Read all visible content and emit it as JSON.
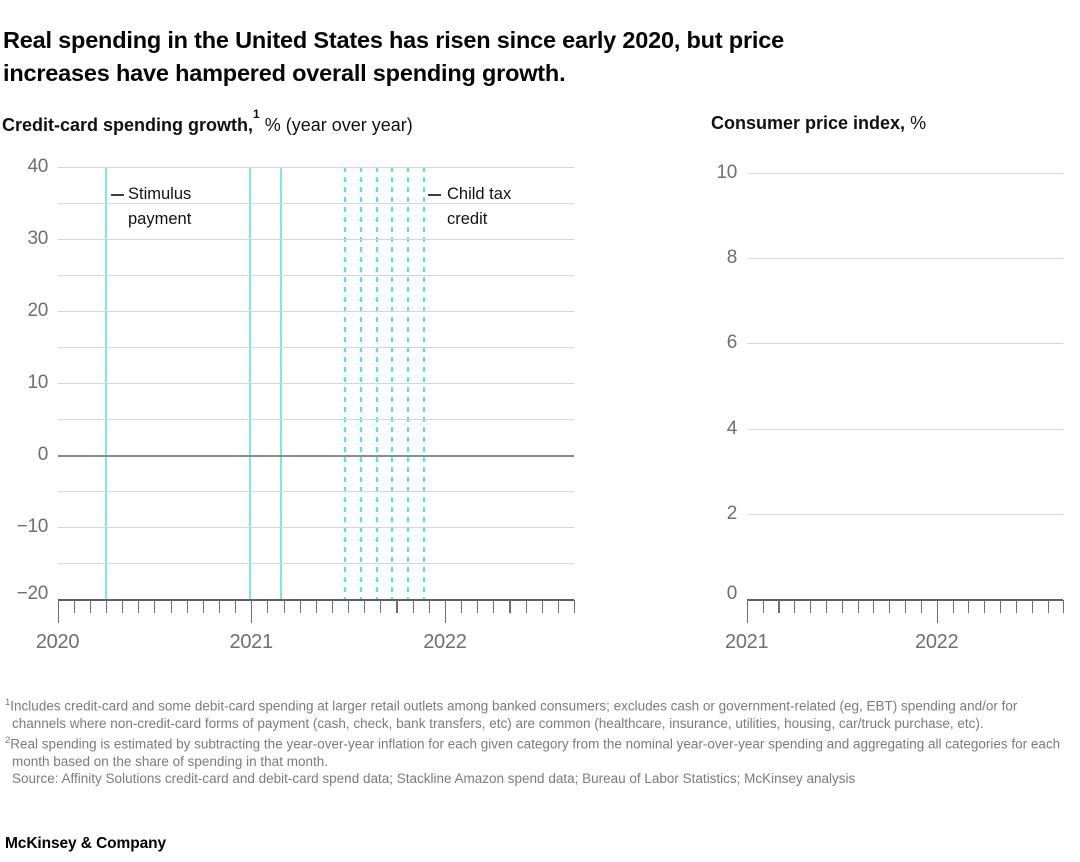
{
  "page": {
    "title_line1": "Real spending in the United States has risen since early 2020, but price",
    "title_line2": "increases have hampered overall spending growth.",
    "footer_wordmark": "McKinsey & Company"
  },
  "charts": {
    "left": {
      "title_bold": "Credit-card spending growth,",
      "title_sup": "1",
      "title_rest": "% (year over year)",
      "y_ticks": [
        {
          "v": 40,
          "t": "40"
        },
        {
          "v": 30,
          "t": "30"
        },
        {
          "v": 20,
          "t": "20"
        },
        {
          "v": 10,
          "t": "10"
        },
        {
          "v": 0,
          "t": "0"
        },
        {
          "v": -10,
          "t": "−10"
        },
        {
          "v": -20,
          "t": "−20"
        }
      ],
      "x_year_ticks": [
        {
          "month": 0,
          "t": "2020"
        },
        {
          "month": 12,
          "t": "2021"
        },
        {
          "month": 24,
          "t": "2022"
        }
      ],
      "event_lines": [
        {
          "style": "solid",
          "month": 3.0
        },
        {
          "style": "solid",
          "month": 11.95
        },
        {
          "style": "solid",
          "month": 13.85
        },
        {
          "style": "dashed",
          "month": 17.8
        },
        {
          "style": "dashed",
          "month": 18.8
        },
        {
          "style": "dashed",
          "month": 19.8
        },
        {
          "style": "dashed",
          "month": 20.75
        },
        {
          "style": "dashed",
          "month": 21.7
        },
        {
          "style": "dashed",
          "month": 22.7
        }
      ],
      "annotations": {
        "stimulus": {
          "line1": "Stimulus",
          "line2": "payment"
        },
        "child_tax": {
          "line1": "Child tax",
          "line2": "credit"
        }
      },
      "colors": {
        "solid_line": "#7ce9e9",
        "dashed_line": "#4de8e8"
      }
    },
    "right": {
      "title_bold": "Consumer price index,",
      "title_rest": "%",
      "y_ticks": [
        {
          "v": 10,
          "t": "10"
        },
        {
          "v": 8,
          "t": "8"
        },
        {
          "v": 6,
          "t": "6"
        },
        {
          "v": 4,
          "t": "4"
        },
        {
          "v": 2,
          "t": "2"
        },
        {
          "v": 0,
          "t": "0"
        }
      ],
      "x_year_ticks": [
        {
          "month": 0,
          "t": "2021"
        },
        {
          "month": 12,
          "t": "2022"
        }
      ],
      "event_lines": []
    }
  },
  "footnotes": {
    "fn1_sup": "1",
    "fn1_text": "Includes credit-card and some debit-card spending at larger retail outlets among banked consumers; excludes cash or government-related (eg, EBT) spending and/or for channels where non-credit-card forms of payment (cash, check, bank transfers, etc) are common (healthcare, insurance, utilities, housing, car/truck purchase, etc).",
    "fn2_sup": "2",
    "fn2_text": "Real spending is estimated by subtracting the year-over-year inflation for each given category from the nominal year-over-year spending and aggregating all categories for each month based on the share of spending in that month.",
    "source": "Source: Affinity Solutions credit-card and debit-card spend data; Stackline Amazon spend data; Bureau of Labor Statistics; McKinsey analysis"
  },
  "chart_data": [
    {
      "type": "line",
      "title": "Credit-card spending growth, % (year over year)",
      "footnote_ref": "1",
      "x_range_months": [
        "2020-01",
        "2022-09"
      ],
      "x_tick_labels": [
        "2020",
        "2021",
        "2022"
      ],
      "ylim": [
        -20,
        40
      ],
      "y_major_ticks": [
        40,
        30,
        20,
        10,
        0,
        -10,
        -20
      ],
      "y_minor_step": 5,
      "grid": "horizontal-on",
      "legend": "none",
      "series": [],
      "note": "No data series plotted; frame shows axes, gridlines and vertical event marker lines only",
      "events": [
        {
          "label": "Stimulus payment",
          "style": "solid-vertical-lines",
          "color": "#7ce9e9",
          "approx_dates": [
            "2020-04",
            "2021-01",
            "2021-03"
          ]
        },
        {
          "label": "Child tax credit",
          "style": "dashed-vertical-lines",
          "color": "#4de8e8",
          "approx_dates": [
            "2021-07",
            "2021-08",
            "2021-09",
            "2021-10",
            "2021-11",
            "2021-12"
          ]
        }
      ]
    },
    {
      "type": "line",
      "title": "Consumer price index, %",
      "x_range_months": [
        "2021-01",
        "2022-09"
      ],
      "x_tick_labels": [
        "2021",
        "2022"
      ],
      "ylim": [
        0,
        10
      ],
      "y_major_ticks": [
        10,
        8,
        6,
        4,
        2,
        0
      ],
      "grid": "horizontal-on",
      "legend": "none",
      "series": [],
      "note": "No data series plotted; empty axes frame"
    }
  ]
}
